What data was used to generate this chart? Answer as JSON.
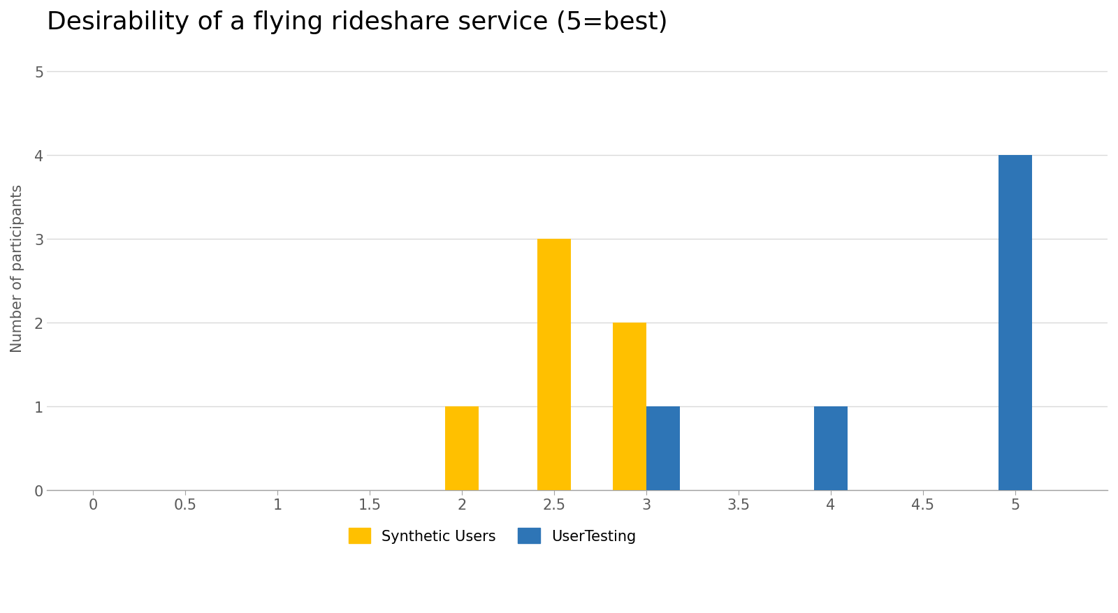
{
  "title": "Desirability of a flying rideshare service (5=best)",
  "ylabel": "Number of participants",
  "xlabel": "",
  "background_color": "#ffffff",
  "title_fontsize": 26,
  "axis_fontsize": 15,
  "tick_fontsize": 15,
  "legend_fontsize": 15,
  "synthetic_color": "#FFC000",
  "usertesting_color": "#2E75B6",
  "synthetic_data": {
    "2.0": 1,
    "2.5": 3,
    "3.0": 2
  },
  "usertesting_data": {
    "3.0": 1,
    "4.0": 1,
    "5.0": 4
  },
  "xlim": [
    -0.25,
    5.5
  ],
  "ylim": [
    0,
    5.3
  ],
  "yticks": [
    0,
    1,
    2,
    3,
    4,
    5
  ],
  "xticks": [
    0.0,
    0.5,
    1.0,
    1.5,
    2.0,
    2.5,
    3.0,
    3.5,
    4.0,
    4.5,
    5.0
  ],
  "bar_width": 0.18,
  "legend_labels": [
    "Synthetic Users",
    "UserTesting"
  ],
  "grid_color": "#d9d9d9",
  "grid_linestyle": "-",
  "grid_linewidth": 1.0
}
